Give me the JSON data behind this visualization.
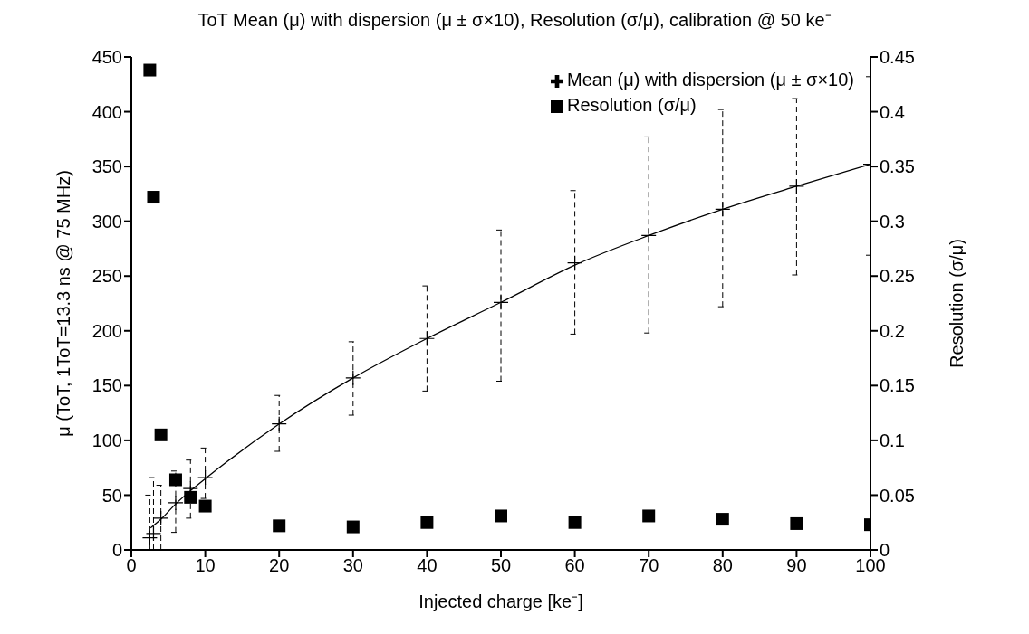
{
  "chart_data": {
    "type": "scatter",
    "title": "ToT Mean (μ) with dispersion (μ ± σ×10), Resolution (σ/μ), calibration @ 50 ke⁻",
    "xlabel": "Injected charge [ke⁻]",
    "ylabel": "μ (ToT, 1ToT=13.3 ns @ 75 MHz)",
    "y2label": "Resolution (σ/μ)",
    "xlim": [
      0,
      100
    ],
    "xticks": [
      0,
      10,
      20,
      30,
      40,
      50,
      60,
      70,
      80,
      90,
      100
    ],
    "ylim": [
      0,
      450
    ],
    "yticks": [
      0,
      50,
      100,
      150,
      200,
      250,
      300,
      350,
      400,
      450
    ],
    "y2lim": [
      0,
      0.45
    ],
    "y2ticks": [
      0,
      0.05,
      0.1,
      0.15,
      0.2,
      0.25,
      0.3,
      0.35,
      0.4,
      0.45
    ],
    "legend": "top right",
    "grid": false,
    "series": [
      {
        "name": "Mean (μ) with dispersion (μ ± σ×10)",
        "marker": "cross",
        "line_style": "dashed",
        "color": "#000000",
        "x": [
          2.5,
          3,
          4,
          6,
          8,
          10,
          20,
          30,
          40,
          50,
          60,
          70,
          80,
          90,
          100
        ],
        "values": [
          11,
          15,
          29,
          43,
          56,
          66,
          115,
          157,
          193,
          226,
          262,
          287,
          311,
          332,
          352
        ],
        "errors": [
          [
            0,
            50
          ],
          [
            0,
            66
          ],
          [
            0,
            59
          ],
          [
            16,
            72
          ],
          [
            29,
            82
          ],
          [
            47,
            93
          ],
          [
            90,
            141
          ],
          [
            123,
            190
          ],
          [
            145,
            241
          ],
          [
            154,
            292
          ],
          [
            197,
            328
          ],
          [
            198,
            377
          ],
          [
            222,
            402
          ],
          [
            251,
            412
          ],
          [
            269,
            432
          ]
        ]
      },
      {
        "type": "line",
        "marker": "none",
        "line_style": "solid",
        "color": "#000000",
        "x": [
          2.6,
          4,
          6,
          8,
          10,
          20,
          30,
          40,
          50,
          60,
          70,
          80,
          90,
          100
        ],
        "values": [
          20,
          28,
          42,
          54,
          65,
          115,
          157,
          193,
          226,
          260,
          287,
          311,
          332,
          352
        ]
      },
      {
        "name": "Resolution (σ/μ)",
        "marker": "square",
        "axis": "y2",
        "color": "#000000",
        "x": [
          2.5,
          3,
          4,
          6,
          8,
          10,
          20,
          30,
          40,
          50,
          60,
          70,
          80,
          90,
          100
        ],
        "values": [
          0.438,
          0.322,
          0.105,
          0.064,
          0.048,
          0.04,
          0.022,
          0.021,
          0.025,
          0.031,
          0.025,
          0.031,
          0.028,
          0.024,
          0.023
        ]
      }
    ]
  }
}
